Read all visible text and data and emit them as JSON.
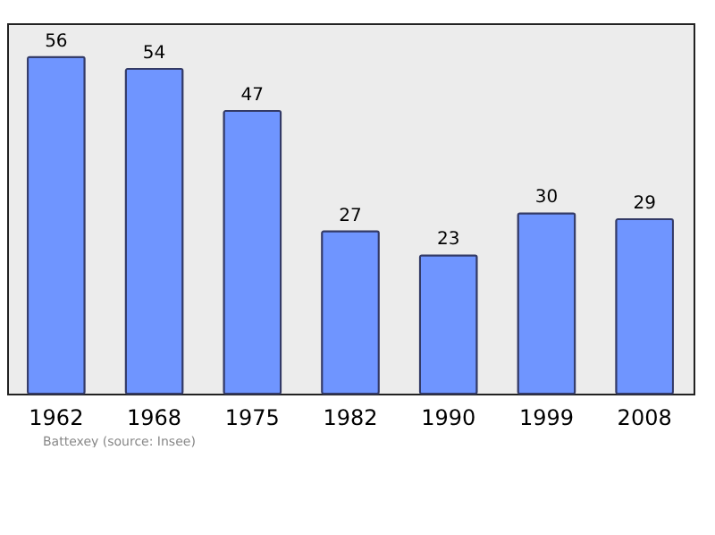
{
  "chart_data": {
    "type": "bar",
    "categories": [
      "1962",
      "1968",
      "1975",
      "1982",
      "1990",
      "1999",
      "2008"
    ],
    "values": [
      56,
      54,
      47,
      27,
      23,
      30,
      29
    ],
    "color": "#6f95ff",
    "data_labels": true,
    "grid": false,
    "annotations": [
      "Battexey (source: Insee)"
    ]
  }
}
